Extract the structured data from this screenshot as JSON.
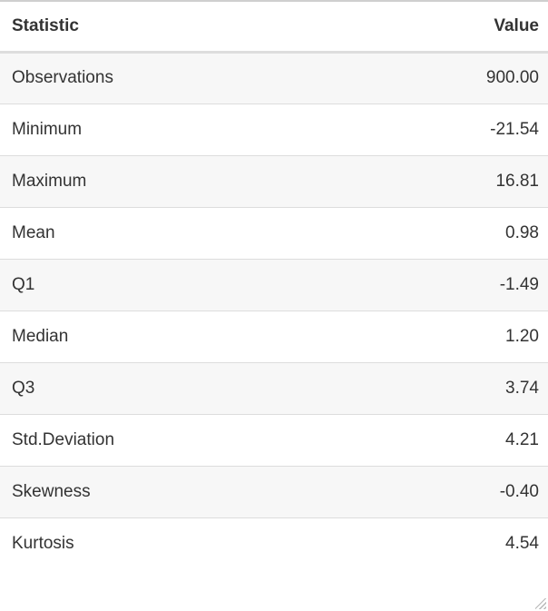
{
  "table": {
    "headers": {
      "statistic": "Statistic",
      "value": "Value"
    },
    "rows": [
      {
        "statistic": "Observations",
        "value": "900.00"
      },
      {
        "statistic": "Minimum",
        "value": "-21.54"
      },
      {
        "statistic": "Maximum",
        "value": "16.81"
      },
      {
        "statistic": "Mean",
        "value": "0.98"
      },
      {
        "statistic": "Q1",
        "value": "-1.49"
      },
      {
        "statistic": "Median",
        "value": "1.20"
      },
      {
        "statistic": "Q3",
        "value": "3.74"
      },
      {
        "statistic": "Std.Deviation",
        "value": "4.21"
      },
      {
        "statistic": "Skewness",
        "value": "-0.40"
      },
      {
        "statistic": "Kurtosis",
        "value": "4.54"
      }
    ]
  },
  "icons": {
    "resize_handle": "resize-grip-icon"
  }
}
